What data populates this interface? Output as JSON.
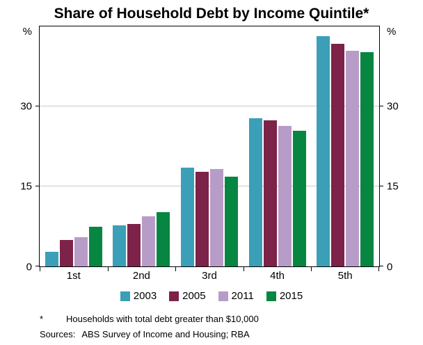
{
  "title": "Share of Household Debt by Income Quintile*",
  "chart_data": {
    "type": "bar",
    "title": "Share of Household Debt by Income Quintile*",
    "categories": [
      "1st",
      "2nd",
      "3rd",
      "4th",
      "5th"
    ],
    "series": [
      {
        "name": "2003",
        "color": "#3b9fb8",
        "values": [
          2.8,
          7.7,
          18.5,
          27.8,
          43.2
        ]
      },
      {
        "name": "2005",
        "color": "#7d2248",
        "values": [
          5.0,
          8.0,
          17.8,
          27.4,
          41.8
        ]
      },
      {
        "name": "2011",
        "color": "#b89cc8",
        "values": [
          5.5,
          9.4,
          18.2,
          26.4,
          40.5
        ]
      },
      {
        "name": "2015",
        "color": "#078642",
        "values": [
          7.4,
          10.2,
          16.8,
          25.4,
          40.2
        ]
      }
    ],
    "xlabel": "",
    "y_unit": "%",
    "ylim": [
      0,
      45
    ],
    "yticks": [
      0,
      15,
      30
    ],
    "gridlines": [
      15,
      30
    ],
    "grid": true,
    "legend_position": "bottom",
    "frame": true
  },
  "footnote": {
    "marker": "*",
    "text": "Households with total debt greater than $10,000"
  },
  "sources": {
    "label": "Sources:",
    "text": "ABS Survey of Income and Housing; RBA"
  }
}
